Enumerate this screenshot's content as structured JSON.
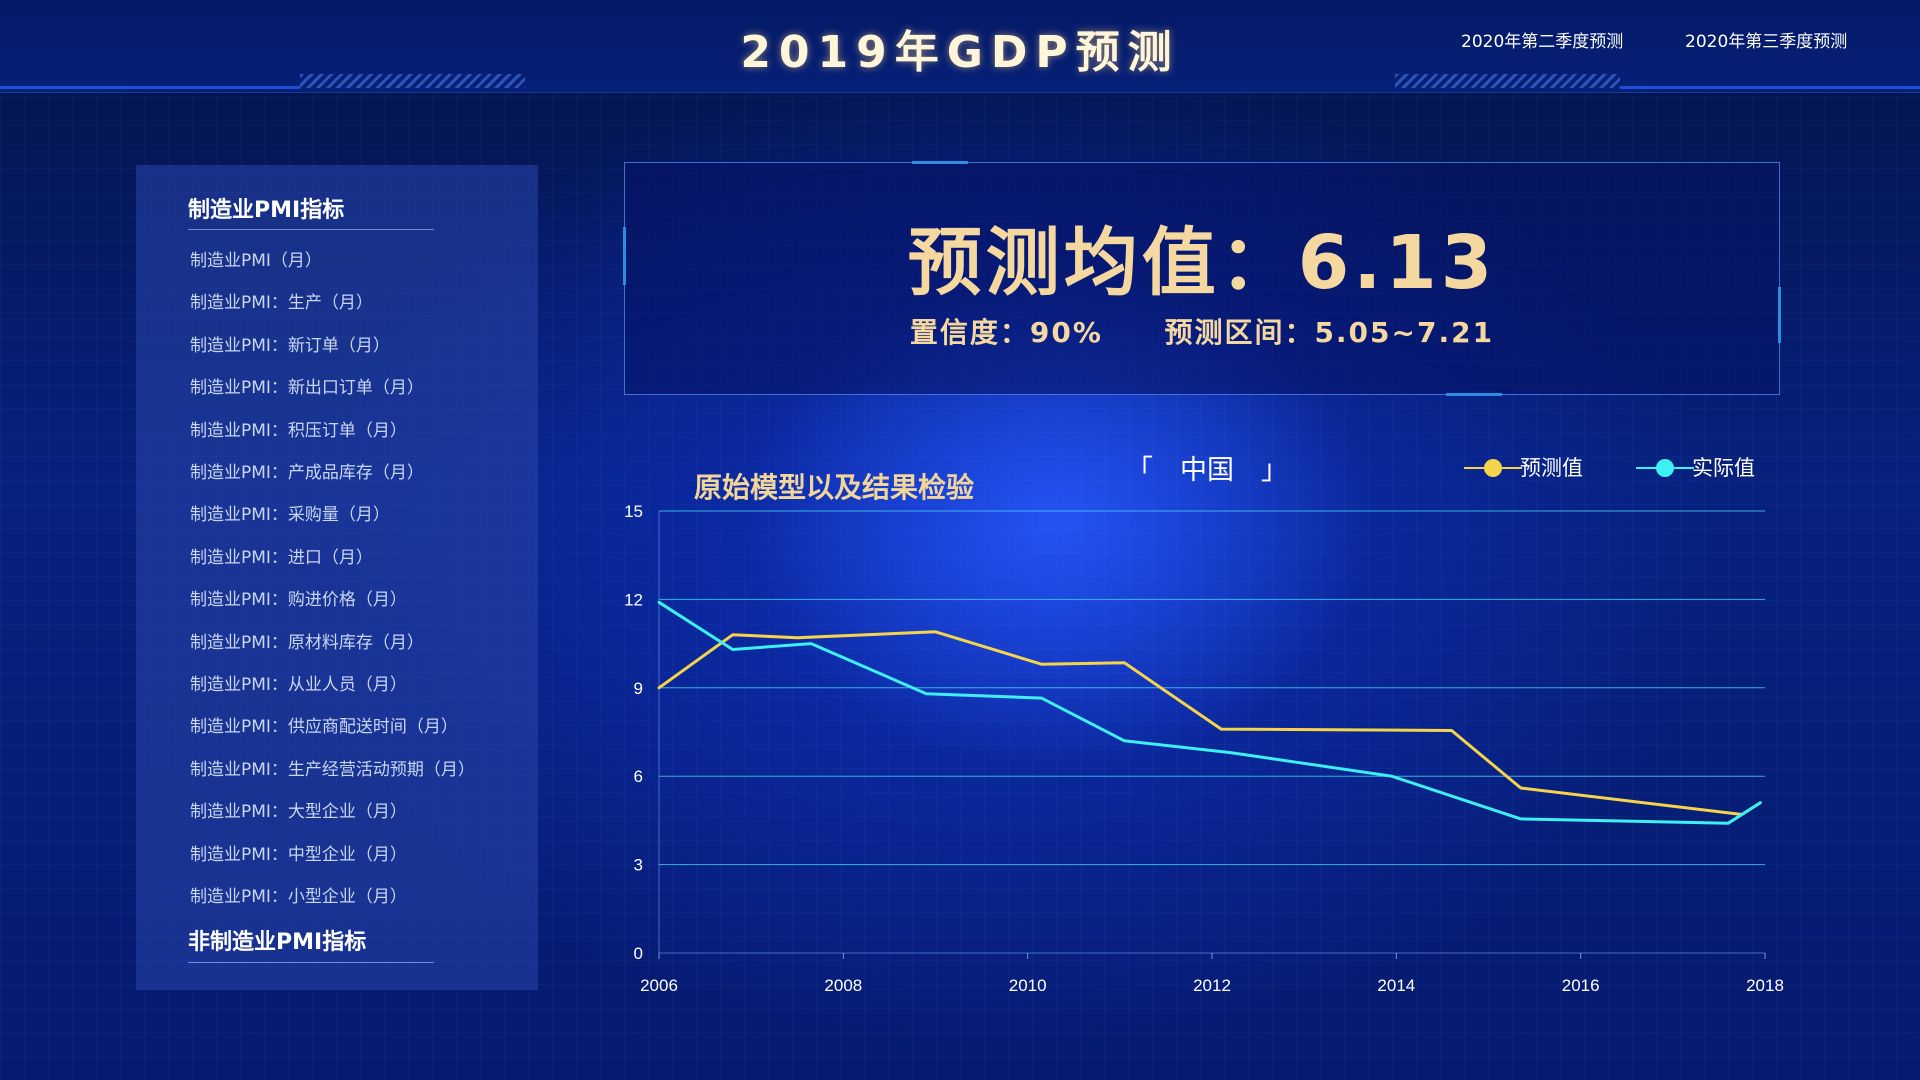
{
  "header": {
    "title": "2019年GDP预测",
    "tabs": [
      {
        "label": "2020年第二季度预测"
      },
      {
        "label": "2020年第三季度预测"
      }
    ]
  },
  "sidebar": {
    "manufacturing_heading": "制造业PMI指标",
    "items": [
      "制造业PMI（月）",
      "制造业PMI：生产（月）",
      "制造业PMI：新订单（月）",
      "制造业PMI：新出口订单（月）",
      "制造业PMI：积压订单（月）",
      "制造业PMI：产成品库存（月）",
      "制造业PMI：采购量（月）",
      "制造业PMI：进口（月）",
      "制造业PMI：购进价格（月）",
      "制造业PMI：原材料库存（月）",
      "制造业PMI：从业人员（月）",
      "制造业PMI：供应商配送时间（月）",
      "制造业PMI：生产经营活动预期（月）",
      "制造业PMI：大型企业（月）",
      "制造业PMI：中型企业（月）",
      "制造业PMI：小型企业（月）"
    ],
    "non_manufacturing_heading": "非制造业PMI指标"
  },
  "forecast": {
    "mean_text": "预测均值：6.13",
    "confidence_text": "置信度：90%",
    "interval_text": "预测区间：5.05~7.21"
  },
  "chart_section": {
    "title": "原始模型以及结果检验",
    "region": "「　中国　」"
  },
  "colors": {
    "forecast_line": "#f5d44c",
    "actual_line": "#3ef0f2",
    "title_gold": "#f4d8a0",
    "gridline": "#3ec9f0"
  },
  "chart_data": {
    "type": "line",
    "xlabel": "",
    "ylabel": "",
    "xlim": [
      2006,
      2018
    ],
    "ylim": [
      0,
      15
    ],
    "x_ticks": [
      "2006",
      "2008",
      "2010",
      "2012",
      "2014",
      "2016",
      "2018"
    ],
    "y_ticks": [
      "0",
      "3",
      "6",
      "9",
      "12",
      "15"
    ],
    "grid": true,
    "legend_position": "top-right",
    "series": [
      {
        "name": "预测值",
        "color": "#f5d44c",
        "points": [
          [
            2006.0,
            9.0
          ],
          [
            2006.8,
            10.8
          ],
          [
            2007.5,
            10.7
          ],
          [
            2009.0,
            10.9
          ],
          [
            2010.15,
            9.8
          ],
          [
            2011.05,
            9.85
          ],
          [
            2012.1,
            7.6
          ],
          [
            2014.6,
            7.55
          ],
          [
            2015.35,
            5.6
          ],
          [
            2017.75,
            4.7
          ]
        ]
      },
      {
        "name": "实际值",
        "color": "#3ef0f2",
        "points": [
          [
            2006.0,
            11.9
          ],
          [
            2006.8,
            10.3
          ],
          [
            2007.65,
            10.5
          ],
          [
            2008.9,
            8.8
          ],
          [
            2010.15,
            8.65
          ],
          [
            2011.05,
            7.2
          ],
          [
            2012.2,
            6.8
          ],
          [
            2013.95,
            6.0
          ],
          [
            2015.35,
            4.55
          ],
          [
            2017.6,
            4.4
          ],
          [
            2017.95,
            5.1
          ]
        ]
      }
    ]
  }
}
